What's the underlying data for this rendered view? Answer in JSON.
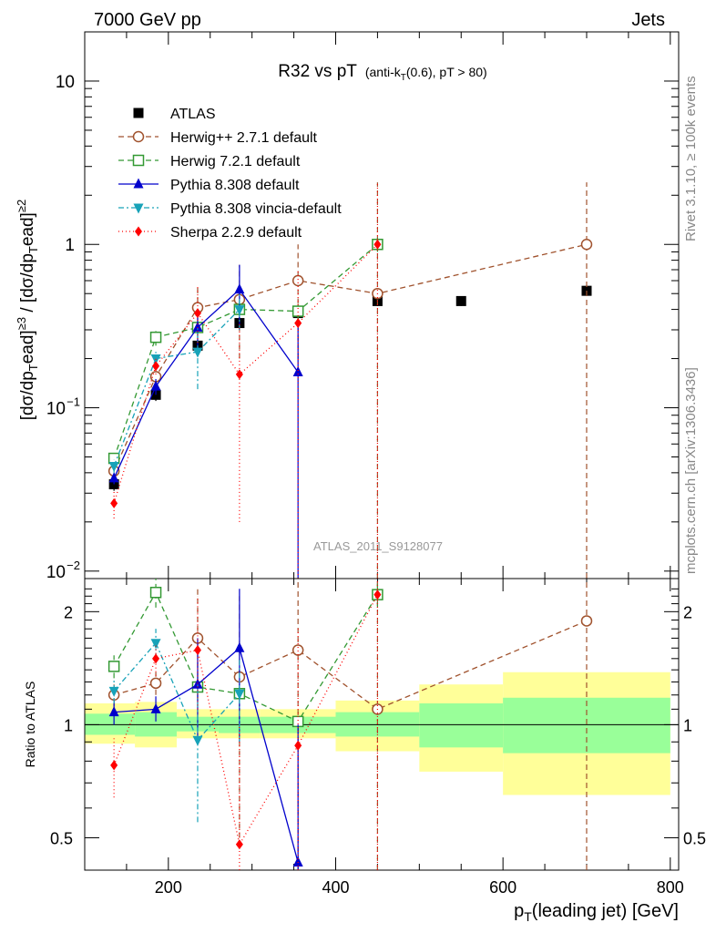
{
  "header": {
    "left": "7000 GeV pp",
    "right": "Jets",
    "title_main": "R32 vs pT",
    "title_sub": "(anti-k",
    "title_sub_sub": "T",
    "title_sub_end": "(0.6), pT > 80)",
    "side_top": "Rivet 3.1.10, ≥ 100k events",
    "side_bottom": "mcplots.cern.ch [arXiv:1306.3436]",
    "analysis_id": "ATLAS_2011_S9128077"
  },
  "chart_data": [
    {
      "type": "scatter",
      "panel": "main",
      "log_y": true,
      "ylim": [
        0.009,
        20
      ],
      "xlim": [
        100,
        810
      ],
      "ylabel": "[dσ/dp_T^lead]^≥3 / [dσ/dp_T^lead]^≥2",
      "y_ticks": [
        {
          "value": 0.01,
          "label": "10",
          "exp": "−2"
        },
        {
          "value": 0.1,
          "label": "10",
          "exp": "−1"
        },
        {
          "value": 1,
          "label": "1",
          "exp": ""
        },
        {
          "value": 10,
          "label": "10",
          "exp": ""
        }
      ],
      "series": [
        {
          "name": "ATLAS",
          "color": "#000000",
          "marker": "square-filled",
          "dash": "none",
          "points": [
            {
              "x": 135,
              "y": 0.034,
              "lo": 0.031,
              "hi": 0.037
            },
            {
              "x": 185,
              "y": 0.12,
              "lo": 0.11,
              "hi": 0.13
            },
            {
              "x": 235,
              "y": 0.24,
              "lo": 0.22,
              "hi": 0.26
            },
            {
              "x": 285,
              "y": 0.33,
              "lo": 0.3,
              "hi": 0.36
            },
            {
              "x": 355,
              "y": 0.38,
              "lo": 0.35,
              "hi": 0.41
            },
            {
              "x": 450,
              "y": 0.45,
              "lo": 0.42,
              "hi": 0.48
            },
            {
              "x": 550,
              "y": 0.45,
              "lo": 0.42,
              "hi": 0.48
            },
            {
              "x": 700,
              "y": 0.52,
              "lo": 0.49,
              "hi": 0.55
            }
          ]
        },
        {
          "name": "Herwig++ 2.7.1 default",
          "color": "#a0522d",
          "marker": "circle-open",
          "dash": "6,4",
          "points": [
            {
              "x": 135,
              "y": 0.041,
              "lo": 0.038,
              "hi": 0.044
            },
            {
              "x": 185,
              "y": 0.155,
              "lo": 0.145,
              "hi": 0.165
            },
            {
              "x": 235,
              "y": 0.41,
              "lo": 0.3,
              "hi": 0.55
            },
            {
              "x": 285,
              "y": 0.46,
              "lo": 0.2,
              "hi": 0.75
            },
            {
              "x": 355,
              "y": 0.6,
              "lo": 0.2,
              "hi": 1.0
            },
            {
              "x": 450,
              "y": 0.5,
              "lo": 0.005,
              "hi": 2.4
            },
            {
              "x": 700,
              "y": 1.0,
              "lo": 0.005,
              "hi": 2.4
            }
          ]
        },
        {
          "name": "Herwig 7.2.1 default",
          "color": "#339933",
          "marker": "square-open",
          "dash": "6,4",
          "points": [
            {
              "x": 135,
              "y": 0.049,
              "lo": 0.045,
              "hi": 0.053
            },
            {
              "x": 185,
              "y": 0.27,
              "lo": 0.24,
              "hi": 0.3
            },
            {
              "x": 235,
              "y": 0.31,
              "lo": 0.28,
              "hi": 0.34
            },
            {
              "x": 285,
              "y": 0.4,
              "lo": 0.36,
              "hi": 0.44
            },
            {
              "x": 355,
              "y": 0.39,
              "lo": 0.35,
              "hi": 0.43
            },
            {
              "x": 450,
              "y": 1.0,
              "lo": 0.9,
              "hi": 1.1
            }
          ]
        },
        {
          "name": "Pythia 8.308 default",
          "color": "#0000cc",
          "marker": "triangle-up",
          "dash": "none",
          "points": [
            {
              "x": 135,
              "y": 0.037,
              "lo": 0.034,
              "hi": 0.04
            },
            {
              "x": 185,
              "y": 0.135,
              "lo": 0.12,
              "hi": 0.15
            },
            {
              "x": 235,
              "y": 0.31,
              "lo": 0.22,
              "hi": 0.4
            },
            {
              "x": 285,
              "y": 0.53,
              "lo": 0.3,
              "hi": 0.75
            },
            {
              "x": 355,
              "y": 0.165,
              "lo": 0.005,
              "hi": 0.35
            }
          ]
        },
        {
          "name": "Pythia 8.308 vincia-default",
          "color": "#17a2b8",
          "marker": "triangle-down",
          "dash": "6,3,2,3",
          "points": [
            {
              "x": 135,
              "y": 0.044,
              "lo": 0.04,
              "hi": 0.048
            },
            {
              "x": 185,
              "y": 0.2,
              "lo": 0.18,
              "hi": 0.22
            },
            {
              "x": 235,
              "y": 0.22,
              "lo": 0.13,
              "hi": 0.31
            },
            {
              "x": 285,
              "y": 0.4,
              "lo": 0.3,
              "hi": 0.5
            }
          ]
        },
        {
          "name": "Sherpa 2.2.9 default",
          "color": "#ff0000",
          "marker": "diamond-filled",
          "dash": "1,3",
          "points": [
            {
              "x": 135,
              "y": 0.026,
              "lo": 0.021,
              "hi": 0.031
            },
            {
              "x": 185,
              "y": 0.18,
              "lo": 0.16,
              "hi": 0.2
            },
            {
              "x": 235,
              "y": 0.38,
              "lo": 0.25,
              "hi": 0.55
            },
            {
              "x": 285,
              "y": 0.16,
              "lo": 0.02,
              "hi": 0.33
            },
            {
              "x": 355,
              "y": 0.33,
              "lo": 0.005,
              "hi": 0.7
            },
            {
              "x": 450,
              "y": 1.0,
              "lo": 0.005,
              "hi": 2.4
            }
          ]
        }
      ]
    },
    {
      "type": "scatter",
      "panel": "ratio",
      "log_y": true,
      "ylim": [
        0.41,
        2.45
      ],
      "xlim": [
        100,
        810
      ],
      "xlabel": "p_T(leading jet) [GeV]",
      "ylabel": "Ratio to ATLAS",
      "x_ticks": [
        200,
        400,
        600,
        800
      ],
      "y_ticks": [
        {
          "value": 0.5,
          "label": "0.5"
        },
        {
          "value": 1,
          "label": "1"
        },
        {
          "value": 2,
          "label": "2"
        }
      ],
      "bands": [
        {
          "x0": 100,
          "x1": 160,
          "green": [
            0.94,
            1.07
          ],
          "yellow": [
            0.89,
            1.14
          ]
        },
        {
          "x0": 160,
          "x1": 210,
          "green": [
            0.93,
            1.08
          ],
          "yellow": [
            0.87,
            1.15
          ]
        },
        {
          "x0": 210,
          "x1": 260,
          "green": [
            0.96,
            1.05
          ],
          "yellow": [
            0.92,
            1.1
          ]
        },
        {
          "x0": 260,
          "x1": 310,
          "green": [
            0.95,
            1.05
          ],
          "yellow": [
            0.92,
            1.1
          ]
        },
        {
          "x0": 310,
          "x1": 400,
          "green": [
            0.95,
            1.05
          ],
          "yellow": [
            0.92,
            1.1
          ]
        },
        {
          "x0": 400,
          "x1": 500,
          "green": [
            0.93,
            1.08
          ],
          "yellow": [
            0.85,
            1.16
          ]
        },
        {
          "x0": 500,
          "x1": 600,
          "green": [
            0.87,
            1.14
          ],
          "yellow": [
            0.75,
            1.28
          ]
        },
        {
          "x0": 600,
          "x1": 800,
          "green": [
            0.84,
            1.18
          ],
          "yellow": [
            0.65,
            1.38
          ]
        }
      ],
      "series": [
        {
          "name": "Herwig++ 2.7.1 default",
          "color": "#a0522d",
          "marker": "circle-open",
          "dash": "6,4",
          "points": [
            {
              "x": 135,
              "y": 1.2,
              "lo": 1.12,
              "hi": 1.28
            },
            {
              "x": 185,
              "y": 1.29,
              "lo": 1.2,
              "hi": 1.38
            },
            {
              "x": 235,
              "y": 1.7,
              "lo": 1.2,
              "hi": 2.3
            },
            {
              "x": 285,
              "y": 1.34,
              "lo": 0.5,
              "hi": 2.2
            },
            {
              "x": 355,
              "y": 1.58,
              "lo": 0.4,
              "hi": 2.45
            },
            {
              "x": 450,
              "y": 1.1,
              "lo": 0.4,
              "hi": 2.45
            },
            {
              "x": 700,
              "y": 1.89,
              "lo": 0.4,
              "hi": 2.45
            }
          ]
        },
        {
          "name": "Herwig 7.2.1 default",
          "color": "#339933",
          "marker": "square-open",
          "dash": "6,4",
          "points": [
            {
              "x": 135,
              "y": 1.43,
              "lo": 1.33,
              "hi": 1.53
            },
            {
              "x": 185,
              "y": 2.25,
              "lo": 2.05,
              "hi": 2.45
            },
            {
              "x": 235,
              "y": 1.26,
              "lo": 1.16,
              "hi": 1.36
            },
            {
              "x": 285,
              "y": 1.21,
              "lo": 1.11,
              "hi": 1.31
            },
            {
              "x": 355,
              "y": 1.02,
              "lo": 0.96,
              "hi": 1.08
            },
            {
              "x": 450,
              "y": 2.22,
              "lo": 2.05,
              "hi": 2.4
            }
          ]
        },
        {
          "name": "Pythia 8.308 default",
          "color": "#0000cc",
          "marker": "triangle-up",
          "dash": "none",
          "points": [
            {
              "x": 135,
              "y": 1.08,
              "lo": 1.0,
              "hi": 1.16
            },
            {
              "x": 185,
              "y": 1.1,
              "lo": 1.02,
              "hi": 1.19
            },
            {
              "x": 235,
              "y": 1.28,
              "lo": 0.9,
              "hi": 1.7
            },
            {
              "x": 285,
              "y": 1.6,
              "lo": 0.9,
              "hi": 2.3
            },
            {
              "x": 355,
              "y": 0.43,
              "lo": 0.4,
              "hi": 1.0
            }
          ]
        },
        {
          "name": "Pythia 8.308 vincia-default",
          "color": "#17a2b8",
          "marker": "triangle-down",
          "dash": "6,3,2,3",
          "points": [
            {
              "x": 135,
              "y": 1.23,
              "lo": 1.14,
              "hi": 1.32
            },
            {
              "x": 185,
              "y": 1.65,
              "lo": 1.5,
              "hi": 1.8
            },
            {
              "x": 235,
              "y": 0.91,
              "lo": 0.55,
              "hi": 1.3
            },
            {
              "x": 285,
              "y": 1.21,
              "lo": 0.9,
              "hi": 1.5
            }
          ]
        },
        {
          "name": "Sherpa 2.2.9 default",
          "color": "#ff0000",
          "marker": "diamond-filled",
          "dash": "1,3",
          "points": [
            {
              "x": 135,
              "y": 0.78,
              "lo": 0.64,
              "hi": 0.92
            },
            {
              "x": 185,
              "y": 1.5,
              "lo": 1.35,
              "hi": 1.65
            },
            {
              "x": 235,
              "y": 1.58,
              "lo": 1.1,
              "hi": 2.2
            },
            {
              "x": 285,
              "y": 0.48,
              "lo": 0.41,
              "hi": 1.0
            },
            {
              "x": 355,
              "y": 0.88,
              "lo": 0.41,
              "hi": 1.8
            },
            {
              "x": 450,
              "y": 2.22,
              "lo": 0.41,
              "hi": 2.45
            }
          ]
        }
      ]
    }
  ]
}
